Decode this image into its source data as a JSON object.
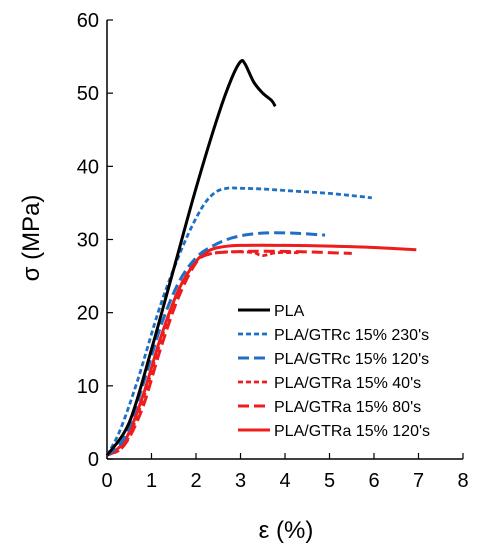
{
  "chart_data": {
    "type": "line",
    "title": "",
    "xlabel": "ε (%)",
    "ylabel": "σ (MPa)",
    "xlim": [
      0,
      8
    ],
    "ylim": [
      0,
      60
    ],
    "x_ticks": [
      "0",
      "1",
      "2",
      "3",
      "4",
      "5",
      "6",
      "7",
      "8"
    ],
    "y_ticks": [
      "0",
      "10",
      "20",
      "30",
      "40",
      "50",
      "60"
    ],
    "grid": false,
    "legend_position": "lower-right",
    "series": [
      {
        "name": "PLA",
        "color": "#000000",
        "dash": "solid",
        "x": [
          0,
          0.5,
          1.0,
          1.5,
          2.0,
          2.5,
          2.8,
          3.0,
          3.1,
          3.3,
          3.5,
          3.7,
          3.78
        ],
        "y": [
          0.5,
          5,
          15,
          26,
          37,
          47,
          52,
          54.3,
          54,
          51.5,
          50,
          49,
          48.2
        ]
      },
      {
        "name": "PLA/GTRc 15% 230's",
        "color": "#1f6fc5",
        "dash": "short",
        "x": [
          0,
          0.3,
          0.7,
          1.2,
          1.7,
          2.1,
          2.4,
          2.7,
          3.0,
          3.5,
          4.0,
          4.5,
          5.0,
          5.5,
          5.95
        ],
        "y": [
          0.5,
          4,
          11,
          21,
          29,
          34,
          36.3,
          37,
          37,
          36.9,
          36.7,
          36.5,
          36.3,
          36,
          35.7
        ]
      },
      {
        "name": "PLA/GTRc 15% 120's",
        "color": "#1f6fc5",
        "dash": "long",
        "x": [
          0,
          0.4,
          0.8,
          1.2,
          1.6,
          2.0,
          2.4,
          2.8,
          3.2,
          3.6,
          4.0,
          4.4,
          4.9
        ],
        "y": [
          0.5,
          3,
          10,
          18,
          24,
          27.5,
          29.2,
          30.2,
          30.7,
          30.9,
          30.9,
          30.8,
          30.6
        ]
      },
      {
        "name": "PLA/GTRa 15% 40's",
        "color": "#ee1c1c",
        "dash": "short",
        "x": [
          0,
          0.4,
          0.8,
          1.2,
          1.6,
          2.0,
          2.3,
          2.7,
          3.0,
          3.3,
          3.5,
          3.8,
          4.3
        ],
        "y": [
          0.5,
          2,
          8,
          16,
          23,
          27,
          28,
          28.3,
          28.3,
          28.2,
          27.8,
          28.2,
          28.2
        ]
      },
      {
        "name": "PLA/GTRa 15% 80's",
        "color": "#ee1c1c",
        "dash": "long",
        "x": [
          0,
          0.4,
          0.8,
          1.2,
          1.6,
          2.0,
          2.3,
          2.8,
          3.5,
          4.5,
          5.5
        ],
        "y": [
          0.5,
          2,
          7,
          15,
          22,
          26.8,
          28,
          28.3,
          28.4,
          28.3,
          28.1
        ]
      },
      {
        "name": "PLA/GTRa 15% 120's",
        "color": "#ee1c1c",
        "dash": "solid",
        "x": [
          0,
          0.4,
          0.8,
          1.2,
          1.6,
          2.0,
          2.3,
          2.6,
          3.0,
          4.0,
          5.0,
          6.0,
          6.95
        ],
        "y": [
          0.5,
          2.5,
          8.5,
          16.5,
          23,
          27,
          28.5,
          29,
          29.2,
          29.2,
          29.1,
          28.9,
          28.6
        ]
      }
    ]
  }
}
